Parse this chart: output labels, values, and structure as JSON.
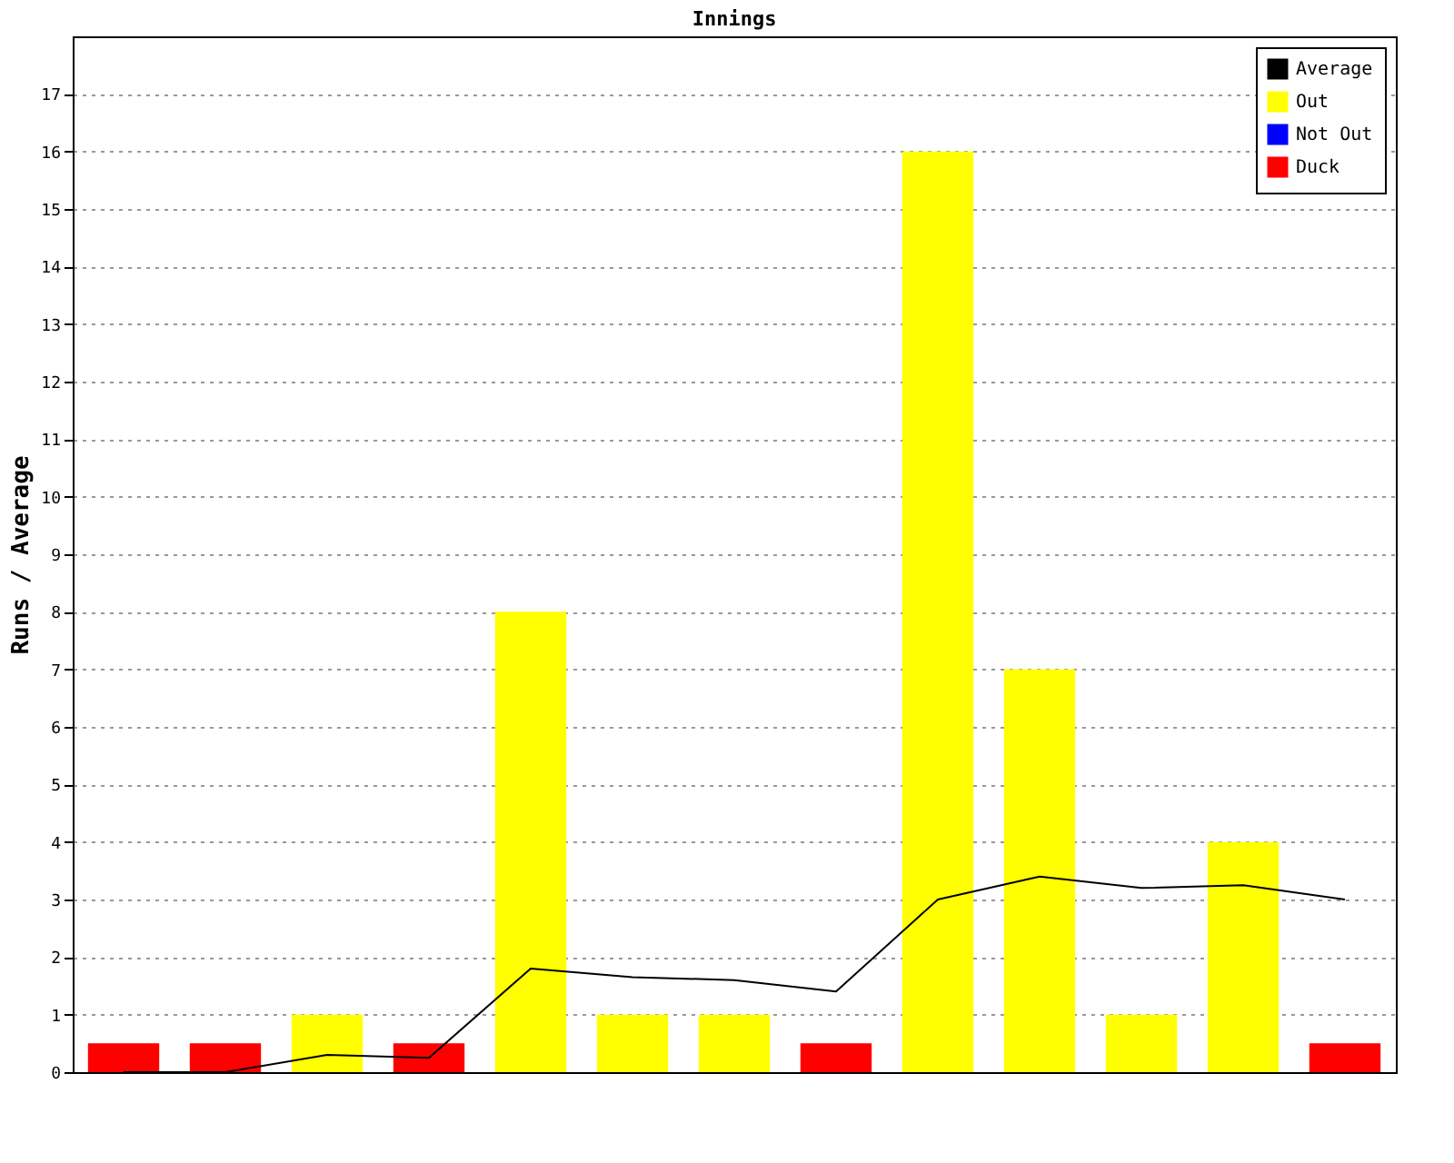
{
  "chart_data": {
    "type": "bar",
    "title": "Innings",
    "ylabel": "Runs / Average",
    "categories": [
      null,
      null,
      null,
      null,
      null,
      null,
      null,
      null,
      null,
      null,
      null,
      null,
      null
    ],
    "series": [
      {
        "name": "Average",
        "type": "line",
        "color": "#000000",
        "values": [
          0,
          0,
          0.3,
          0.25,
          1.8,
          1.65,
          1.6,
          1.4,
          3,
          3.4,
          3.2,
          3.25,
          3
        ]
      },
      {
        "name": "Out",
        "color": "#ffff00",
        "values": [
          null,
          null,
          1,
          null,
          8,
          1,
          1,
          null,
          16,
          7,
          1,
          4,
          null
        ]
      },
      {
        "name": "Not Out",
        "color": "#0000ff",
        "values": [
          null,
          null,
          null,
          null,
          null,
          null,
          null,
          null,
          null,
          null,
          null,
          null,
          null
        ]
      },
      {
        "name": "Duck",
        "color": "#ff0000",
        "values": [
          0.5,
          0.5,
          null,
          0.5,
          null,
          null,
          null,
          0.5,
          null,
          null,
          null,
          null,
          0.5
        ]
      }
    ],
    "ylim": [
      0,
      18
    ],
    "yticks": [
      0,
      1,
      2,
      3,
      4,
      5,
      6,
      7,
      8,
      9,
      10,
      11,
      12,
      13,
      14,
      15,
      16,
      17
    ],
    "grid": "y",
    "legend": "top right",
    "tick_labels": "y",
    "marker": "none"
  }
}
